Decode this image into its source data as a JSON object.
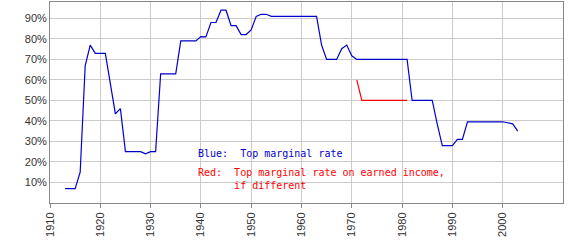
{
  "chart_data": {
    "type": "line",
    "series": [
      {
        "color": "#0000cc",
        "x": [
          1913,
          1915,
          1916,
          1917,
          1918,
          1919,
          1921,
          1922,
          1923,
          1924,
          1925,
          1928,
          1929,
          1930,
          1931,
          1932,
          1935,
          1936,
          1939,
          1940,
          1941,
          1942,
          1943,
          1944,
          1945,
          1946,
          1947,
          1948,
          1949,
          1950,
          1951,
          1952,
          1953,
          1954,
          1963,
          1964,
          1965,
          1967,
          1968,
          1969,
          1970,
          1971,
          1981,
          1982,
          1986,
          1987,
          1988,
          1990,
          1991,
          1992,
          1993,
          2000,
          2001,
          2002,
          2003
        ],
        "values": [
          7,
          7,
          15,
          67,
          77,
          73,
          73,
          58,
          43.5,
          46,
          25,
          25,
          24,
          25,
          25,
          63,
          63,
          79,
          79,
          81.1,
          81,
          88,
          88,
          94,
          94,
          86.45,
          86.45,
          82.13,
          82.13,
          84.36,
          91,
          92,
          92,
          91,
          91,
          77,
          70,
          70,
          75.25,
          77,
          71.75,
          70,
          70,
          50,
          50,
          38.5,
          28,
          28,
          31,
          31,
          39.6,
          39.6,
          39.1,
          38.6,
          35
        ]
      },
      {
        "color": "#ff0000",
        "x": [
          1971,
          1972,
          1981
        ],
        "values": [
          60,
          50,
          50
        ]
      }
    ],
    "annotations": [
      "Blue:  Top marginal rate",
      "Red:  Top marginal rate on earned income,\n      if different"
    ],
    "xlim": [
      1910,
      2012
    ],
    "xticks": [
      1910,
      1920,
      1930,
      1940,
      1950,
      1960,
      1970,
      1980,
      1990,
      2000
    ],
    "ylim": [
      0,
      98
    ],
    "yticks": [
      {
        "value": 10,
        "label": "10%"
      },
      {
        "value": 20,
        "label": "20%"
      },
      {
        "value": 30,
        "label": "30%"
      },
      {
        "value": 40,
        "label": "40%"
      },
      {
        "value": 50,
        "label": "50%"
      },
      {
        "value": 60,
        "label": "60%"
      },
      {
        "value": 70,
        "label": "70%"
      },
      {
        "value": 80,
        "label": "80%"
      },
      {
        "value": 90,
        "label": "90%"
      }
    ],
    "grid": true
  }
}
